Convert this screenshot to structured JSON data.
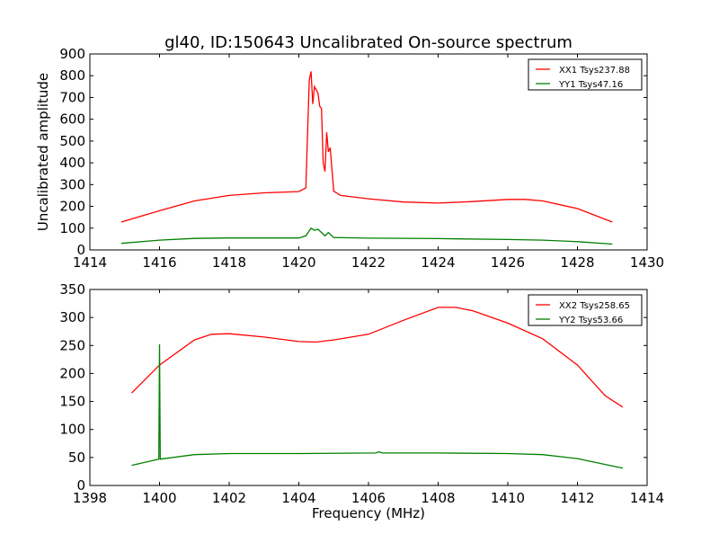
{
  "chart_data": [
    {
      "type": "line",
      "title": "gl40, ID:150643 Uncalibrated On-source spectrum",
      "xlabel": "",
      "ylabel": "Uncalibrated amplitude",
      "xlim": [
        1414,
        1430
      ],
      "ylim": [
        0,
        900
      ],
      "xticks": [
        1414,
        1416,
        1418,
        1420,
        1422,
        1424,
        1426,
        1428,
        1430
      ],
      "yticks": [
        0,
        100,
        200,
        300,
        400,
        500,
        600,
        700,
        800,
        900
      ],
      "legend": "top-right",
      "series": [
        {
          "name": "XX1 Tsys237.88",
          "color": "#ff0000",
          "x": [
            1414.9,
            1416,
            1417,
            1418,
            1419,
            1420,
            1420.2,
            1420.3,
            1420.35,
            1420.4,
            1420.45,
            1420.55,
            1420.6,
            1420.65,
            1420.7,
            1420.75,
            1420.8,
            1420.85,
            1420.9,
            1421,
            1421.2,
            1422,
            1423,
            1424,
            1425,
            1426,
            1426.5,
            1427,
            1428,
            1429
          ],
          "y": [
            128,
            180,
            225,
            250,
            262,
            268,
            285,
            780,
            820,
            670,
            750,
            720,
            660,
            650,
            400,
            360,
            540,
            450,
            470,
            270,
            250,
            235,
            220,
            215,
            222,
            232,
            232,
            225,
            190,
            128
          ]
        },
        {
          "name": "YY1 Tsys47.16",
          "color": "#008000",
          "x": [
            1414.9,
            1416,
            1417,
            1418,
            1420,
            1420.2,
            1420.35,
            1420.45,
            1420.55,
            1420.65,
            1420.75,
            1420.85,
            1421,
            1422,
            1424,
            1426,
            1427,
            1428,
            1429
          ],
          "y": [
            30,
            45,
            53,
            55,
            55,
            65,
            100,
            90,
            95,
            80,
            65,
            80,
            57,
            54,
            52,
            48,
            45,
            38,
            27
          ]
        }
      ]
    },
    {
      "type": "line",
      "title": "",
      "xlabel": "Frequency (MHz)",
      "ylabel": "",
      "xlim": [
        1398,
        1414
      ],
      "ylim": [
        0,
        350
      ],
      "xticks": [
        1398,
        1400,
        1402,
        1404,
        1406,
        1408,
        1410,
        1412,
        1414
      ],
      "yticks": [
        0,
        50,
        100,
        150,
        200,
        250,
        300,
        350
      ],
      "legend": "top-right",
      "series": [
        {
          "name": "XX2 Tsys258.65",
          "color": "#ff0000",
          "x": [
            1399.2,
            1400,
            1401,
            1401.5,
            1402,
            1403,
            1404,
            1404.5,
            1405,
            1406,
            1407,
            1408,
            1408.5,
            1409,
            1410,
            1411,
            1412,
            1412.8,
            1413.3
          ],
          "y": [
            165,
            215,
            260,
            270,
            271,
            265,
            257,
            256,
            260,
            270,
            295,
            318,
            318,
            312,
            290,
            262,
            215,
            160,
            140
          ]
        },
        {
          "name": "YY2 Tsys53.66",
          "color": "#008000",
          "x": [
            1399.2,
            1399.98,
            1400,
            1400.02,
            1401,
            1402,
            1404,
            1406.2,
            1406.3,
            1406.4,
            1408,
            1410,
            1411,
            1412,
            1413.3
          ],
          "y": [
            36,
            47,
            252,
            47,
            55,
            57,
            57,
            58,
            60,
            58,
            58,
            57,
            55,
            48,
            31
          ]
        }
      ]
    }
  ]
}
